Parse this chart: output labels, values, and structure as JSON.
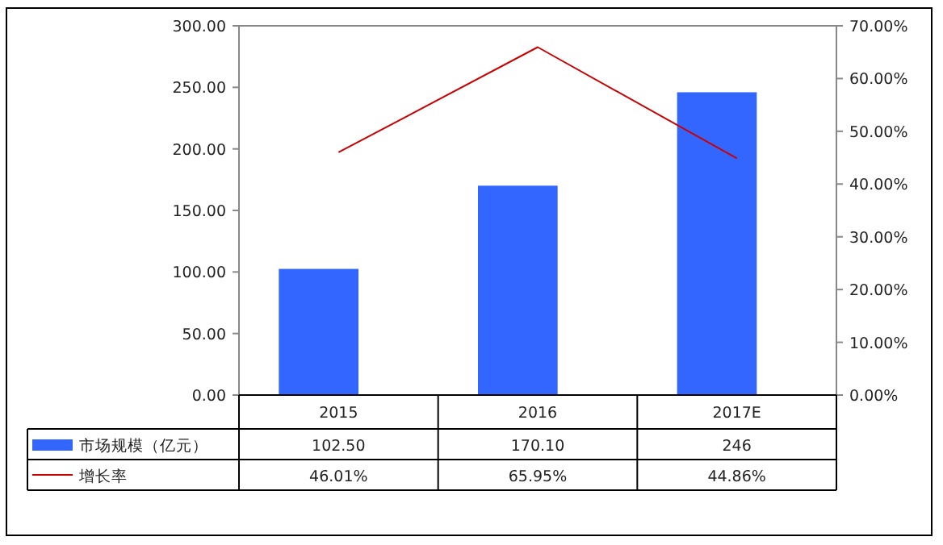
{
  "chart_data": {
    "type": "bar",
    "categories": [
      "2015",
      "2016",
      "2017E"
    ],
    "series": [
      {
        "name": "市场规模（亿元）",
        "color": "#3366ff",
        "values": [
          102.5,
          170.1,
          246
        ],
        "value_labels": [
          "102.50",
          "170.10",
          "246"
        ]
      },
      {
        "name": "增长率",
        "type": "line",
        "axis": "y2",
        "color": "#cc0000",
        "values": [
          46.01,
          65.95,
          44.86
        ],
        "value_labels": [
          "46.01%",
          "65.95%",
          "44.86%"
        ]
      }
    ],
    "ylim": [
      0,
      300
    ],
    "yticks": [
      {
        "value": 0,
        "label": "0.00"
      },
      {
        "value": 50,
        "label": "50.00"
      },
      {
        "value": 100,
        "label": "100.00"
      },
      {
        "value": 150,
        "label": "150.00"
      },
      {
        "value": 200,
        "label": "200.00"
      },
      {
        "value": 250,
        "label": "250.00"
      },
      {
        "value": 300,
        "label": "300.00"
      }
    ],
    "y2lim": [
      0,
      70
    ],
    "y2ticks": [
      {
        "value": 0,
        "label": "0.00%"
      },
      {
        "value": 10,
        "label": "10.00%"
      },
      {
        "value": 20,
        "label": "20.00%"
      },
      {
        "value": 30,
        "label": "30.00%"
      },
      {
        "value": 40,
        "label": "40.00%"
      },
      {
        "value": 50,
        "label": "50.00%"
      },
      {
        "value": 60,
        "label": "60.00%"
      },
      {
        "value": 70,
        "label": "70.00%"
      }
    ],
    "legend": "bottom",
    "marker": "none",
    "line_style": "solid"
  }
}
